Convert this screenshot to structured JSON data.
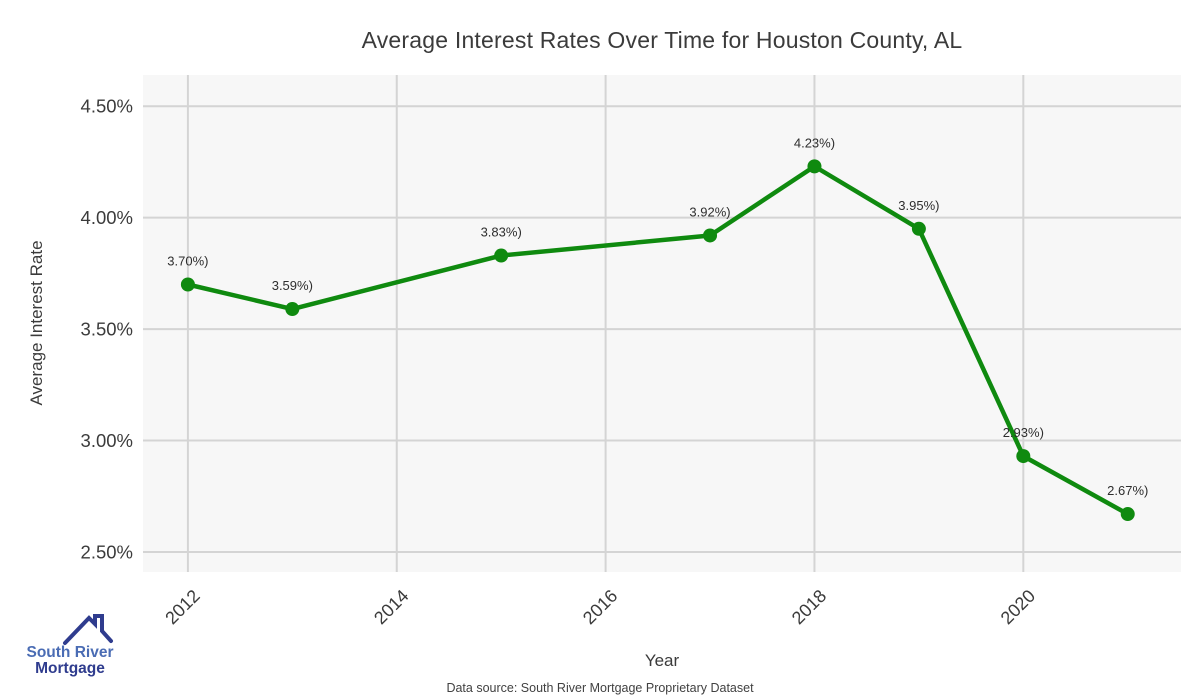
{
  "title": "Average Interest Rates Over Time for Houston County, AL",
  "source_note": "Data source: South River Mortgage Proprietary Dataset",
  "logo": {
    "icon": "house-roof-icon",
    "line1": "South River",
    "line2": "Mortgage",
    "color_primary": "#4a6cb4",
    "color_secondary": "#2f3c8e"
  },
  "chart_data": {
    "type": "line",
    "title": "Average Interest Rates Over Time for Houston County, AL",
    "xlabel": "Year",
    "ylabel": "Average Interest Rate",
    "x": [
      2012,
      2013,
      2015,
      2017,
      2018,
      2019,
      2020,
      2021
    ],
    "values": [
      3.7,
      3.59,
      3.83,
      3.92,
      4.23,
      3.95,
      2.93,
      2.67
    ],
    "point_labels": [
      "3.70%)",
      "3.59%)",
      "3.83%)",
      "3.92%)",
      "4.23%)",
      "3.95%)",
      "2.93%)",
      "2.67%)"
    ],
    "x_ticks": [
      {
        "value": 2012,
        "label": "2012"
      },
      {
        "value": 2014,
        "label": "2014"
      },
      {
        "value": 2016,
        "label": "2016"
      },
      {
        "value": 2018,
        "label": "2018"
      },
      {
        "value": 2020,
        "label": "2020"
      }
    ],
    "y_ticks": [
      {
        "value": 2.5,
        "label": "2.50%"
      },
      {
        "value": 3.0,
        "label": "3.00%"
      },
      {
        "value": 3.5,
        "label": "3.50%"
      },
      {
        "value": 4.0,
        "label": "4.00%"
      },
      {
        "value": 4.5,
        "label": "4.50%"
      }
    ],
    "xlim": [
      2011.57,
      2021.51
    ],
    "ylim": [
      2.41,
      4.64
    ],
    "grid": true,
    "legend": "none",
    "line_color": "#0f8a0f",
    "marker_color": "#0f8a0f",
    "panel_color": "#f7f7f7",
    "grid_color": "#d4d4d4",
    "tick_label_color": "#3b3b3b",
    "point_label_color": "#2e2e2e"
  }
}
